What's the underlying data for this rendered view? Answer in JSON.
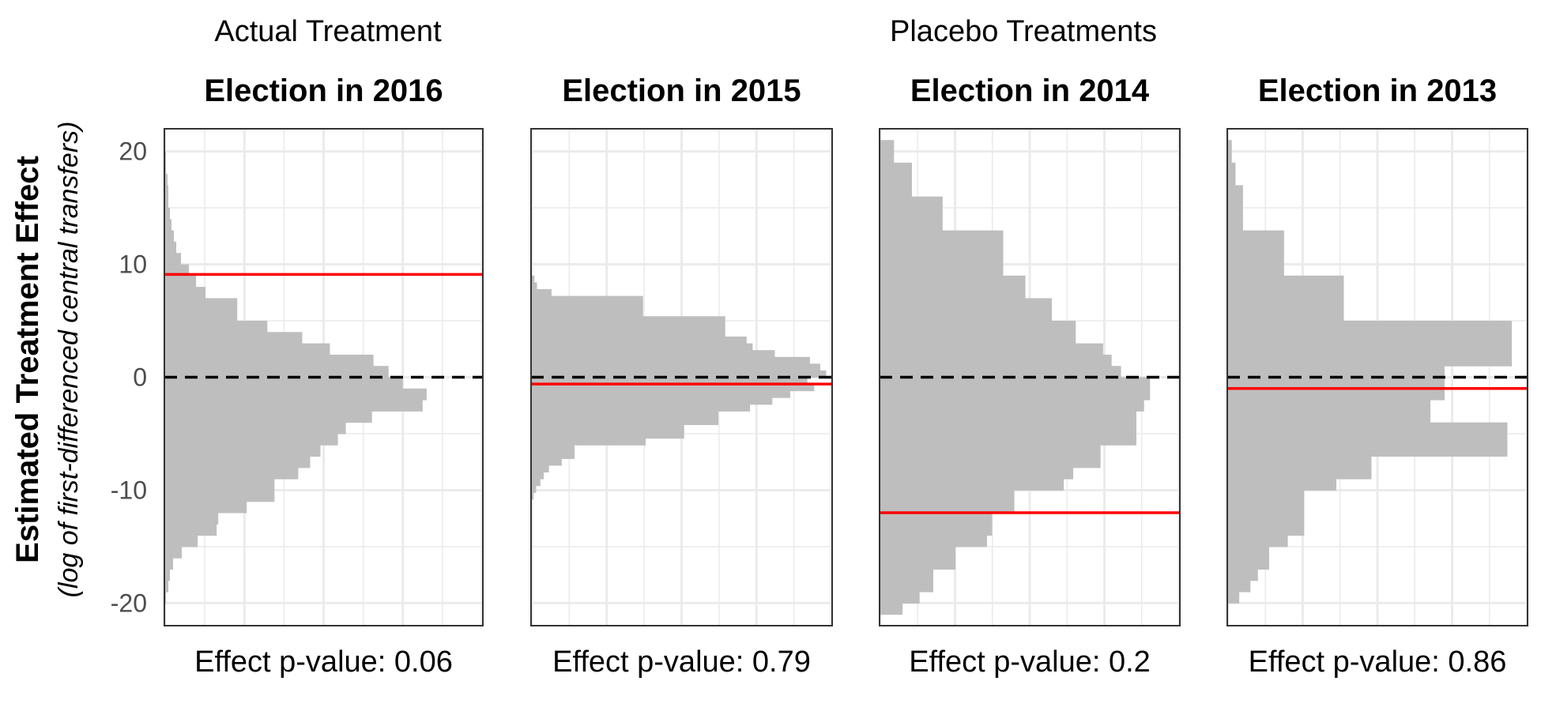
{
  "figure": {
    "group_titles": [
      "Actual Treatment",
      "Placebo Treatments"
    ],
    "ylabel": "Estimated Treatment Effect",
    "ylabel_sub": "(log of first-differenced central transfers)",
    "yticks": [
      20,
      10,
      0,
      -10,
      -20
    ],
    "ylim": [
      -22,
      22
    ],
    "grid": true,
    "colors": {
      "bars": "#bebebe",
      "actual_effect_line": "#ff0000",
      "zero_line": "#000000",
      "grid": "#ebebeb",
      "panel_border": "#333333"
    }
  },
  "chart_data": [
    {
      "type": "bar",
      "orientation": "horizontal",
      "title": "Election in 2016",
      "footer": "Effect p-value:  0.06",
      "bin_width": 1,
      "bins_y": [
        19.5,
        18.5,
        17.5,
        16.5,
        15.5,
        14.5,
        13.5,
        12.5,
        11.5,
        10.5,
        9.5,
        8.5,
        7.5,
        6.5,
        5.5,
        4.5,
        3.5,
        2.5,
        1.5,
        0.5,
        -0.5,
        -1.5,
        -2.5,
        -3.5,
        -4.5,
        -5.5,
        -6.5,
        -7.5,
        -8.5,
        -9.5,
        -10.5,
        -11.5,
        -12.5,
        -13.5,
        -14.5,
        -15.5,
        -16.5,
        -17.5,
        -18.5,
        -19.5
      ],
      "counts": [
        1,
        1,
        3,
        4,
        4,
        6,
        8,
        11,
        14,
        20,
        30,
        39,
        51,
        91,
        91,
        129,
        173,
        208,
        263,
        282,
        300,
        330,
        325,
        261,
        228,
        218,
        196,
        183,
        168,
        138,
        138,
        103,
        67,
        65,
        41,
        21,
        10,
        6,
        4,
        1
      ],
      "xlim": [
        0,
        400
      ],
      "actual_effect": 9.1,
      "reference_line": 0
    },
    {
      "type": "bar",
      "orientation": "horizontal",
      "title": "Election in 2015",
      "footer": "Effect p-value:  0.79",
      "bin_width": 0.6,
      "bins_y": [
        8.7,
        8.1,
        7.5,
        6.9,
        6.3,
        5.7,
        5.1,
        4.5,
        3.9,
        3.3,
        2.7,
        2.1,
        1.5,
        0.9,
        0.3,
        -0.3,
        -0.9,
        -1.5,
        -2.1,
        -2.7,
        -3.3,
        -3.9,
        -4.5,
        -5.1,
        -5.7,
        -6.3,
        -6.9,
        -7.5,
        -8.1,
        -8.7,
        -9.3,
        -9.9,
        -10.5
      ],
      "counts": [
        3,
        6,
        23,
        130,
        130,
        130,
        226,
        226,
        226,
        251,
        258,
        284,
        325,
        337,
        344,
        322,
        330,
        302,
        281,
        255,
        218,
        218,
        178,
        178,
        133,
        50,
        50,
        35,
        20,
        14,
        10,
        5,
        2
      ],
      "xlim": [
        0,
        350
      ],
      "actual_effect": -0.6,
      "reference_line": 0
    },
    {
      "type": "bar",
      "orientation": "horizontal",
      "title": "Election in 2014",
      "footer": "Effect p-value:  0.2",
      "bin_width": 1,
      "bins_y": [
        20.5,
        19.5,
        18.5,
        17.5,
        16.5,
        15.5,
        14.5,
        13.5,
        12.5,
        11.5,
        10.5,
        9.5,
        8.5,
        7.5,
        6.5,
        5.5,
        4.5,
        3.5,
        2.5,
        1.5,
        0.5,
        -0.5,
        -1.5,
        -2.5,
        -3.5,
        -4.5,
        -5.5,
        -6.5,
        -7.5,
        -8.5,
        -9.5,
        -10.5,
        -11.5,
        -12.5,
        -13.5,
        -14.5,
        -15.5,
        -16.5,
        -17.5,
        -18.5,
        -19.5,
        -20.5
      ],
      "counts": [
        16,
        16,
        37,
        37,
        37,
        73,
        73,
        73,
        144,
        144,
        144,
        144,
        170,
        170,
        201,
        201,
        229,
        229,
        261,
        271,
        282,
        316,
        316,
        309,
        300,
        300,
        300,
        258,
        258,
        226,
        215,
        157,
        157,
        131,
        131,
        125,
        88,
        88,
        62,
        62,
        46,
        26
      ],
      "xlim": [
        0,
        350
      ],
      "actual_effect": -12,
      "reference_line": 0
    },
    {
      "type": "bar",
      "orientation": "horizontal",
      "title": "Election in 2013",
      "footer": "Effect p-value:  0.86",
      "bin_width": 1,
      "bins_y": [
        20.5,
        19.5,
        18.5,
        17.5,
        16.5,
        15.5,
        14.5,
        13.5,
        12.5,
        11.5,
        10.5,
        9.5,
        8.5,
        7.5,
        6.5,
        5.5,
        4.5,
        3.5,
        2.5,
        1.5,
        0.5,
        -0.5,
        -1.5,
        -2.5,
        -3.5,
        -4.5,
        -5.5,
        -6.5,
        -7.5,
        -8.5,
        -9.5,
        -10.5,
        -11.5,
        -12.5,
        -13.5,
        -14.5,
        -15.5,
        -16.5,
        -17.5,
        -18.5,
        -19.5
      ],
      "counts": [
        5,
        5,
        10,
        10,
        20,
        20,
        20,
        20,
        75,
        75,
        75,
        75,
        155,
        155,
        155,
        155,
        380,
        380,
        380,
        380,
        290,
        290,
        290,
        271,
        271,
        374,
        374,
        374,
        192,
        192,
        145,
        102,
        102,
        102,
        102,
        80,
        55,
        55,
        40,
        30,
        15
      ],
      "xlim": [
        0,
        400
      ],
      "actual_effect": -1,
      "reference_line": 0
    }
  ]
}
